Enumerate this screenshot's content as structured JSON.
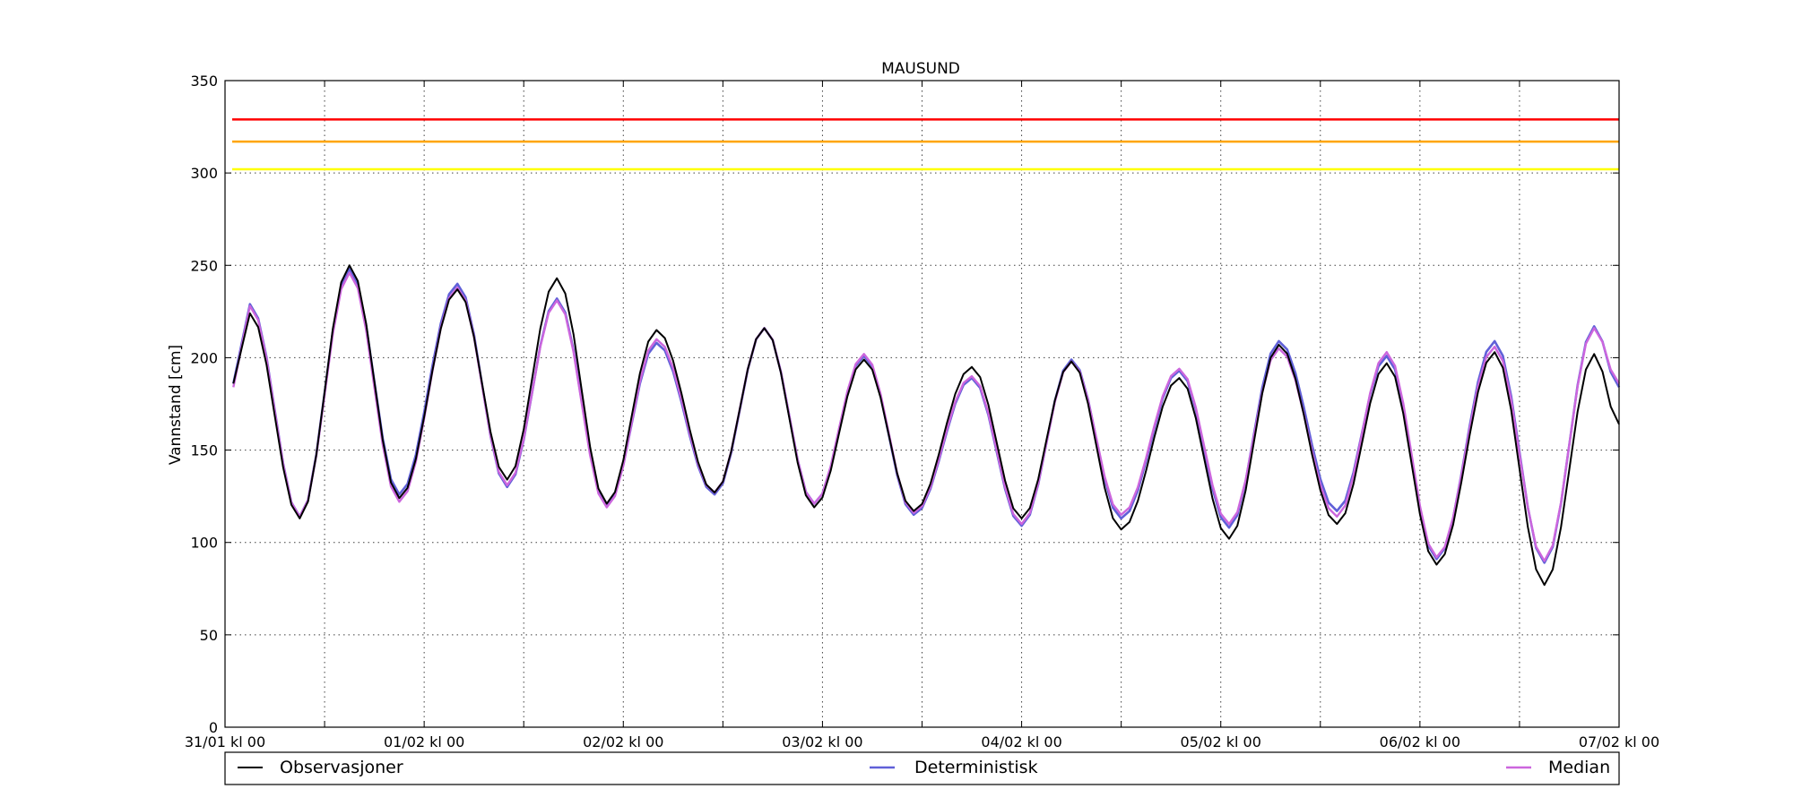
{
  "chart_data": {
    "type": "line",
    "title": "MAUSUND",
    "ylabel": "Vannstand [cm]",
    "xlabel": "",
    "ylim": [
      0,
      350
    ],
    "yticks": [
      0,
      50,
      100,
      150,
      200,
      250,
      300,
      350
    ],
    "xlim_hours": [
      0,
      168
    ],
    "xtick_labels": [
      "31/01 kl 00",
      "01/02 kl 00",
      "02/02 kl 00",
      "03/02 kl 00",
      "04/02 kl 00",
      "05/02 kl 00",
      "06/02 kl 00",
      "07/02 kl 00"
    ],
    "grid": true,
    "legend_position": "bottom",
    "thresholds": [
      {
        "value": 329,
        "color": "#ff0000"
      },
      {
        "value": 317,
        "color": "#ffa500"
      },
      {
        "value": 302,
        "color": "#ffff00"
      }
    ],
    "series": [
      {
        "name": "Observasjoner",
        "color": "#000000",
        "peaks": [
          [
            1,
            186
          ],
          [
            3,
            224
          ],
          [
            9,
            113
          ],
          [
            15,
            250
          ],
          [
            21,
            124
          ],
          [
            28,
            237
          ],
          [
            34,
            134
          ],
          [
            40,
            243
          ],
          [
            46,
            121
          ],
          [
            52,
            215
          ],
          [
            59,
            127
          ],
          [
            65,
            216
          ],
          [
            71,
            119
          ],
          [
            77,
            199
          ],
          [
            83,
            117
          ],
          [
            90,
            195
          ],
          [
            96,
            113
          ],
          [
            102,
            198
          ],
          [
            108,
            107
          ],
          [
            115,
            189
          ],
          [
            121,
            102
          ],
          [
            127,
            207
          ],
          [
            134,
            110
          ],
          [
            140,
            197
          ],
          [
            146,
            88
          ],
          [
            153,
            203
          ],
          [
            159,
            77
          ],
          [
            165,
            202
          ],
          [
            168,
            164
          ]
        ]
      },
      {
        "name": "Deterministisk",
        "color": "#6060d8",
        "peaks": [
          [
            1,
            186
          ],
          [
            3,
            229
          ],
          [
            9,
            114
          ],
          [
            15,
            248
          ],
          [
            21,
            126
          ],
          [
            28,
            240
          ],
          [
            34,
            130
          ],
          [
            40,
            232
          ],
          [
            46,
            120
          ],
          [
            52,
            208
          ],
          [
            59,
            126
          ],
          [
            65,
            216
          ],
          [
            71,
            121
          ],
          [
            77,
            201
          ],
          [
            83,
            115
          ],
          [
            90,
            189
          ],
          [
            96,
            109
          ],
          [
            102,
            199
          ],
          [
            108,
            113
          ],
          [
            115,
            193
          ],
          [
            121,
            108
          ],
          [
            127,
            209
          ],
          [
            134,
            117
          ],
          [
            140,
            201
          ],
          [
            146,
            91
          ],
          [
            153,
            209
          ],
          [
            159,
            89
          ],
          [
            165,
            217
          ],
          [
            168,
            184
          ]
        ]
      },
      {
        "name": "Median",
        "color": "#cc66dd",
        "peaks": [
          [
            1,
            184
          ],
          [
            3,
            228
          ],
          [
            9,
            114
          ],
          [
            15,
            246
          ],
          [
            21,
            122
          ],
          [
            28,
            238
          ],
          [
            34,
            131
          ],
          [
            40,
            231
          ],
          [
            46,
            119
          ],
          [
            52,
            210
          ],
          [
            59,
            127
          ],
          [
            65,
            216
          ],
          [
            71,
            121
          ],
          [
            77,
            202
          ],
          [
            83,
            116
          ],
          [
            90,
            190
          ],
          [
            96,
            110
          ],
          [
            102,
            198
          ],
          [
            108,
            115
          ],
          [
            115,
            194
          ],
          [
            121,
            110
          ],
          [
            127,
            205
          ],
          [
            134,
            114
          ],
          [
            140,
            203
          ],
          [
            146,
            92
          ],
          [
            153,
            206
          ],
          [
            159,
            90
          ],
          [
            165,
            216
          ],
          [
            168,
            186
          ]
        ]
      }
    ]
  }
}
